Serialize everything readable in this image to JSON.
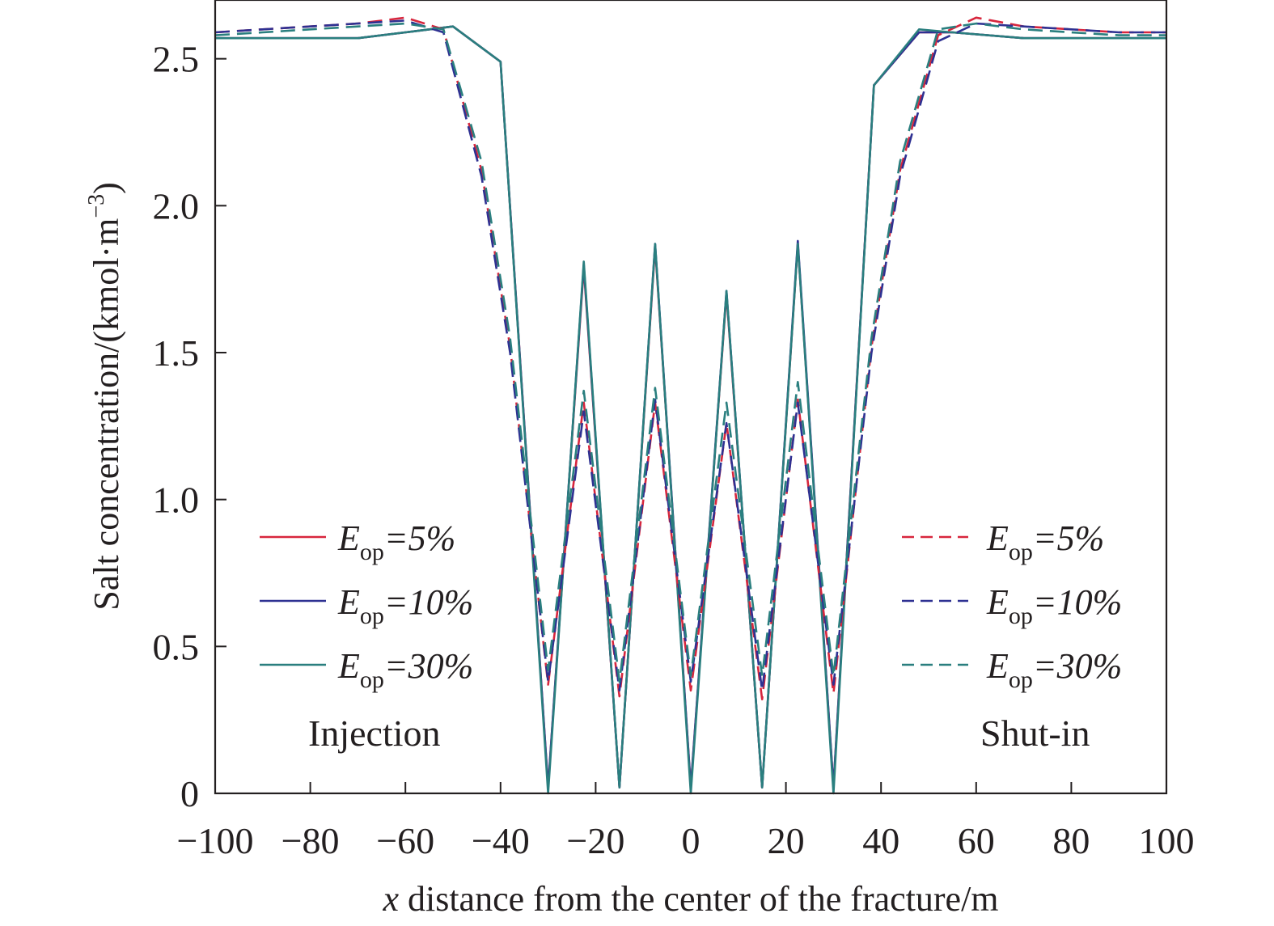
{
  "chart_data": {
    "type": "line",
    "xlabel_var": "x",
    "xlabel_rest": " distance from the center of the fracture/m",
    "ylabel": "Salt concentration/(kmol·m",
    "ylabel_sup": "−3",
    "ylabel_close": ")",
    "xlim": [
      -100,
      100
    ],
    "ylim": [
      0,
      2.7
    ],
    "xticks": [
      -100,
      -80,
      -60,
      -40,
      -20,
      0,
      20,
      40,
      60,
      80,
      100
    ],
    "xtick_labels": [
      "−100",
      "−80",
      "−60",
      "−40",
      "−20",
      "0",
      "20",
      "40",
      "60",
      "80",
      "100"
    ],
    "yticks": [
      0,
      0.5,
      1.0,
      1.5,
      2.0,
      2.5
    ],
    "ytick_labels": [
      "0",
      "0.5",
      "1.0",
      "1.5",
      "2.0",
      "2.5"
    ],
    "legend_groups": [
      {
        "name": "Injection",
        "placement": "left"
      },
      {
        "name": "Shut-in",
        "placement": "right"
      }
    ],
    "series": [
      {
        "legend_var": "E",
        "legend_sub": "op",
        "legend_val": "=5%",
        "group": "Injection",
        "dash": false,
        "color": "#d7263d",
        "points": [
          [
            -100,
            2.57
          ],
          [
            -90,
            2.57
          ],
          [
            -80,
            2.57
          ],
          [
            -70,
            2.57
          ],
          [
            -60,
            2.59
          ],
          [
            -50,
            2.61
          ],
          [
            -40,
            2.49
          ],
          [
            -30,
            0.02
          ],
          [
            -22.5,
            1.79
          ],
          [
            -15,
            0.02
          ],
          [
            -7.5,
            1.86
          ],
          [
            0,
            0.02
          ],
          [
            7.5,
            1.7
          ],
          [
            15,
            0.02
          ],
          [
            22.5,
            1.87
          ],
          [
            30,
            0.02
          ],
          [
            38.5,
            2.41
          ],
          [
            48,
            2.59
          ],
          [
            55,
            2.59
          ],
          [
            70,
            2.57
          ],
          [
            80,
            2.57
          ],
          [
            90,
            2.57
          ],
          [
            100,
            2.57
          ]
        ]
      },
      {
        "legend_var": "E",
        "legend_sub": "op",
        "legend_val": "=10%",
        "group": "Injection",
        "dash": false,
        "color": "#2e3192",
        "points": [
          [
            -100,
            2.57
          ],
          [
            -90,
            2.57
          ],
          [
            -80,
            2.57
          ],
          [
            -70,
            2.57
          ],
          [
            -60,
            2.59
          ],
          [
            -50,
            2.61
          ],
          [
            -40,
            2.49
          ],
          [
            -30,
            0.02
          ],
          [
            -22.5,
            1.8
          ],
          [
            -15,
            0.02
          ],
          [
            -7.5,
            1.87
          ],
          [
            0,
            0.02
          ],
          [
            7.5,
            1.71
          ],
          [
            15,
            0.02
          ],
          [
            22.5,
            1.88
          ],
          [
            30,
            0.02
          ],
          [
            38.5,
            2.41
          ],
          [
            48,
            2.59
          ],
          [
            55,
            2.59
          ],
          [
            70,
            2.57
          ],
          [
            80,
            2.57
          ],
          [
            90,
            2.57
          ],
          [
            100,
            2.57
          ]
        ]
      },
      {
        "legend_var": "E",
        "legend_sub": "op",
        "legend_val": "=30%",
        "group": "Injection",
        "dash": false,
        "color": "#2a7f7f",
        "points": [
          [
            -100,
            2.57
          ],
          [
            -90,
            2.57
          ],
          [
            -80,
            2.57
          ],
          [
            -70,
            2.57
          ],
          [
            -60,
            2.59
          ],
          [
            -50,
            2.61
          ],
          [
            -40,
            2.49
          ],
          [
            -30,
            0.0
          ],
          [
            -22.5,
            1.81
          ],
          [
            -15,
            0.02
          ],
          [
            -7.5,
            1.87
          ],
          [
            0,
            0.0
          ],
          [
            7.5,
            1.71
          ],
          [
            15,
            0.02
          ],
          [
            22.5,
            1.87
          ],
          [
            30,
            0.0
          ],
          [
            38.5,
            2.41
          ],
          [
            48,
            2.6
          ],
          [
            55,
            2.59
          ],
          [
            70,
            2.57
          ],
          [
            80,
            2.57
          ],
          [
            90,
            2.57
          ],
          [
            100,
            2.57
          ]
        ]
      },
      {
        "legend_var": "E",
        "legend_sub": "op",
        "legend_val": "=5%",
        "group": "Shut-in",
        "dash": true,
        "color": "#d7263d",
        "points": [
          [
            -100,
            2.59
          ],
          [
            -90,
            2.6
          ],
          [
            -80,
            2.61
          ],
          [
            -70,
            2.62
          ],
          [
            -60,
            2.64
          ],
          [
            -52,
            2.6
          ],
          [
            -44,
            2.12
          ],
          [
            -38,
            1.52
          ],
          [
            -30,
            0.37
          ],
          [
            -22.5,
            1.33
          ],
          [
            -15,
            0.33
          ],
          [
            -7.5,
            1.33
          ],
          [
            0,
            0.35
          ],
          [
            7.5,
            1.26
          ],
          [
            15,
            0.32
          ],
          [
            22.5,
            1.34
          ],
          [
            30,
            0.34
          ],
          [
            38,
            1.52
          ],
          [
            44,
            2.12
          ],
          [
            52,
            2.58
          ],
          [
            60,
            2.64
          ],
          [
            70,
            2.61
          ],
          [
            80,
            2.6
          ],
          [
            90,
            2.59
          ],
          [
            100,
            2.59
          ]
        ]
      },
      {
        "legend_var": "E",
        "legend_sub": "op",
        "legend_val": "=10%",
        "group": "Shut-in",
        "dash": true,
        "color": "#2e3192",
        "points": [
          [
            -100,
            2.59
          ],
          [
            -90,
            2.6
          ],
          [
            -80,
            2.61
          ],
          [
            -70,
            2.62
          ],
          [
            -60,
            2.63
          ],
          [
            -52,
            2.59
          ],
          [
            -44,
            2.1
          ],
          [
            -38,
            1.5
          ],
          [
            -30,
            0.38
          ],
          [
            -22.5,
            1.3
          ],
          [
            -15,
            0.35
          ],
          [
            -7.5,
            1.34
          ],
          [
            0,
            0.38
          ],
          [
            7.5,
            1.26
          ],
          [
            15,
            0.35
          ],
          [
            22.5,
            1.33
          ],
          [
            30,
            0.37
          ],
          [
            38,
            1.5
          ],
          [
            44,
            2.1
          ],
          [
            52,
            2.56
          ],
          [
            60,
            2.62
          ],
          [
            70,
            2.61
          ],
          [
            80,
            2.6
          ],
          [
            90,
            2.59
          ],
          [
            100,
            2.59
          ]
        ]
      },
      {
        "legend_var": "E",
        "legend_sub": "op",
        "legend_val": "=30%",
        "group": "Shut-in",
        "dash": true,
        "color": "#2a7f7f",
        "points": [
          [
            -100,
            2.58
          ],
          [
            -90,
            2.59
          ],
          [
            -80,
            2.6
          ],
          [
            -70,
            2.61
          ],
          [
            -60,
            2.62
          ],
          [
            -52,
            2.6
          ],
          [
            -44,
            2.15
          ],
          [
            -38,
            1.55
          ],
          [
            -30,
            0.42
          ],
          [
            -22.5,
            1.37
          ],
          [
            -15,
            0.38
          ],
          [
            -7.5,
            1.38
          ],
          [
            0,
            0.4
          ],
          [
            7.5,
            1.33
          ],
          [
            15,
            0.4
          ],
          [
            22.5,
            1.4
          ],
          [
            30,
            0.4
          ],
          [
            38,
            1.55
          ],
          [
            44,
            2.15
          ],
          [
            52,
            2.6
          ],
          [
            60,
            2.62
          ],
          [
            70,
            2.6
          ],
          [
            80,
            2.59
          ],
          [
            90,
            2.58
          ],
          [
            100,
            2.58
          ]
        ]
      }
    ]
  }
}
